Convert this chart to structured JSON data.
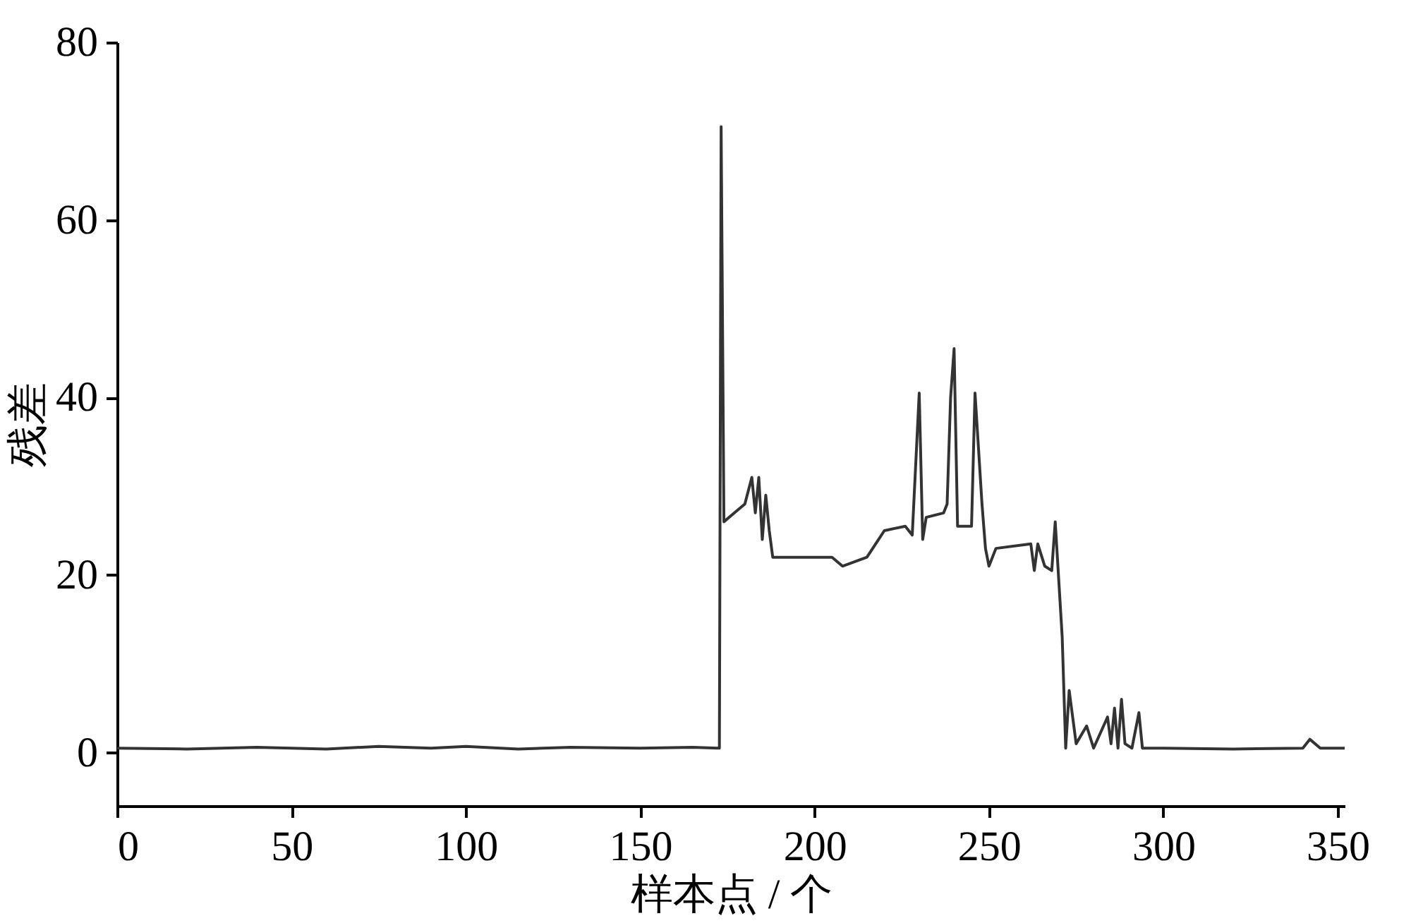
{
  "chart_data": {
    "type": "line",
    "xlabel": "样本点 / 个",
    "ylabel": "残差",
    "xlim": [
      0,
      352
    ],
    "ylim": [
      -6,
      80
    ],
    "xticks": [
      0,
      50,
      100,
      150,
      200,
      250,
      300,
      350
    ],
    "yticks": [
      0,
      20,
      40,
      60,
      80
    ],
    "grid": false,
    "marker": "none",
    "line_style": "solid",
    "series": [
      {
        "color": "#333333",
        "x": [
          0,
          20,
          40,
          60,
          75,
          90,
          100,
          115,
          130,
          150,
          165,
          172.7,
          173.2,
          174,
          177,
          180,
          182,
          183,
          184,
          185,
          186,
          187,
          188,
          195,
          205,
          208,
          215,
          220,
          226,
          228,
          230,
          231,
          232,
          237,
          238,
          239,
          240,
          241,
          245,
          246,
          248,
          249,
          250,
          252,
          262,
          263,
          264,
          266,
          268,
          269,
          271,
          272,
          273,
          275,
          278,
          280,
          284,
          285,
          286,
          287,
          288,
          289,
          291,
          293,
          294,
          300,
          320,
          340,
          342,
          345,
          352
        ],
        "values": [
          0.5,
          0.4,
          0.6,
          0.4,
          0.7,
          0.5,
          0.7,
          0.4,
          0.6,
          0.5,
          0.6,
          0.5,
          70.5,
          26,
          27,
          28,
          31,
          27,
          31,
          24,
          29,
          25,
          22,
          22,
          22,
          21,
          22,
          25,
          25.5,
          24.5,
          40.5,
          24,
          26.5,
          27,
          28,
          40,
          45.5,
          25.5,
          25.5,
          40.5,
          28,
          23,
          21,
          23,
          23.5,
          20.5,
          23.5,
          21,
          20.5,
          26,
          13,
          0.5,
          7,
          1,
          3,
          0.5,
          4,
          1,
          5,
          0.5,
          6,
          1,
          0.5,
          4.5,
          0.5,
          0.5,
          0.4,
          0.5,
          1.5,
          0.5,
          0.5
        ]
      }
    ]
  }
}
